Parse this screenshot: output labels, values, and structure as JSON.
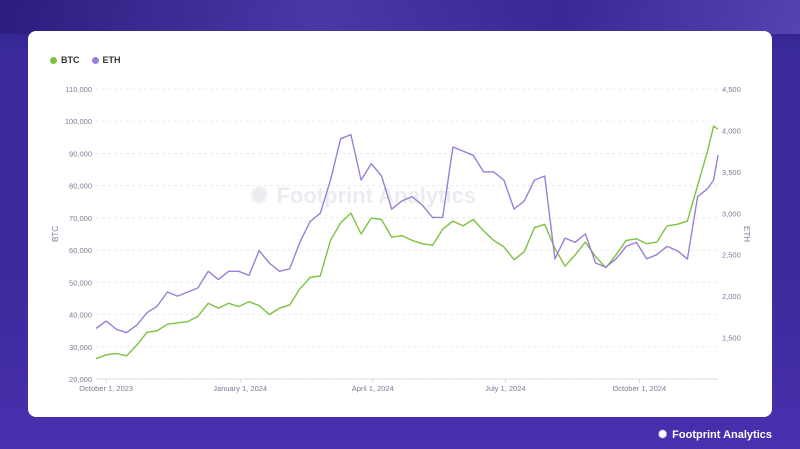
{
  "brand": {
    "name": "Footprint Analytics",
    "icon": "footprint-logo-icon"
  },
  "watermark": {
    "text": "Footprint Analytics"
  },
  "chart_data": {
    "type": "line",
    "x_ticks": [
      "October 1, 2023",
      "January 1, 2024",
      "April 1, 2024",
      "July 1, 2024",
      "October 1, 2024"
    ],
    "x_range": [
      "2023-09-24",
      "2024-11-24"
    ],
    "y_left_label": "BTC",
    "y_left_ticks": [
      "20,000",
      "30,000",
      "40,000",
      "50,000",
      "60,000",
      "70,000",
      "80,000",
      "90,000",
      "100,000",
      "110,000"
    ],
    "y_left_range": [
      20000,
      110000
    ],
    "y_right_label": "ETH",
    "y_right_ticks": [
      "1,500",
      "2,000",
      "2,500",
      "3,000",
      "3,500",
      "4,000",
      "4,500"
    ],
    "y_right_range": [
      1000,
      4500
    ],
    "grid": true,
    "legend_position": "top-left",
    "series": [
      {
        "name": "BTC",
        "color": "#7cc243",
        "axis": "left",
        "points": [
          [
            "2023-09-24",
            26300
          ],
          [
            "2023-10-01",
            27500
          ],
          [
            "2023-10-08",
            27900
          ],
          [
            "2023-10-15",
            27200
          ],
          [
            "2023-10-22",
            30500
          ],
          [
            "2023-10-29",
            34500
          ],
          [
            "2023-11-05",
            35000
          ],
          [
            "2023-11-12",
            37000
          ],
          [
            "2023-11-19",
            37400
          ],
          [
            "2023-11-26",
            37800
          ],
          [
            "2023-12-03",
            39500
          ],
          [
            "2023-12-10",
            43500
          ],
          [
            "2023-12-17",
            42000
          ],
          [
            "2023-12-24",
            43500
          ],
          [
            "2023-12-31",
            42500
          ],
          [
            "2024-01-07",
            44000
          ],
          [
            "2024-01-14",
            42800
          ],
          [
            "2024-01-21",
            40000
          ],
          [
            "2024-01-28",
            42000
          ],
          [
            "2024-02-04",
            43000
          ],
          [
            "2024-02-11",
            48000
          ],
          [
            "2024-02-18",
            51500
          ],
          [
            "2024-02-25",
            52000
          ],
          [
            "2024-03-03",
            63000
          ],
          [
            "2024-03-10",
            68500
          ],
          [
            "2024-03-17",
            71500
          ],
          [
            "2024-03-24",
            65000
          ],
          [
            "2024-03-31",
            70000
          ],
          [
            "2024-04-07",
            69500
          ],
          [
            "2024-04-14",
            64000
          ],
          [
            "2024-04-21",
            64500
          ],
          [
            "2024-04-28",
            63000
          ],
          [
            "2024-05-05",
            62000
          ],
          [
            "2024-05-12",
            61500
          ],
          [
            "2024-05-19",
            66500
          ],
          [
            "2024-05-26",
            69000
          ],
          [
            "2024-06-02",
            67500
          ],
          [
            "2024-06-09",
            69500
          ],
          [
            "2024-06-16",
            66000
          ],
          [
            "2024-06-23",
            63000
          ],
          [
            "2024-06-30",
            61000
          ],
          [
            "2024-07-07",
            57000
          ],
          [
            "2024-07-14",
            59500
          ],
          [
            "2024-07-21",
            67000
          ],
          [
            "2024-07-28",
            68000
          ],
          [
            "2024-08-04",
            60500
          ],
          [
            "2024-08-11",
            55000
          ],
          [
            "2024-08-18",
            58500
          ],
          [
            "2024-08-25",
            62500
          ],
          [
            "2024-09-01",
            58000
          ],
          [
            "2024-09-08",
            54500
          ],
          [
            "2024-09-15",
            58500
          ],
          [
            "2024-09-22",
            63000
          ],
          [
            "2024-09-29",
            63500
          ],
          [
            "2024-10-06",
            62000
          ],
          [
            "2024-10-13",
            62500
          ],
          [
            "2024-10-20",
            67500
          ],
          [
            "2024-10-27",
            68000
          ],
          [
            "2024-11-03",
            69000
          ],
          [
            "2024-11-10",
            80000
          ],
          [
            "2024-11-17",
            91000
          ],
          [
            "2024-11-21",
            98500
          ],
          [
            "2024-11-24",
            97500
          ]
        ]
      },
      {
        "name": "ETH",
        "color": "#9b7fd4",
        "axis": "right",
        "points": [
          [
            "2023-09-24",
            1610
          ],
          [
            "2023-10-01",
            1700
          ],
          [
            "2023-10-08",
            1600
          ],
          [
            "2023-10-15",
            1560
          ],
          [
            "2023-10-22",
            1650
          ],
          [
            "2023-10-29",
            1800
          ],
          [
            "2023-11-05",
            1880
          ],
          [
            "2023-11-12",
            2050
          ],
          [
            "2023-11-19",
            2000
          ],
          [
            "2023-11-26",
            2050
          ],
          [
            "2023-12-03",
            2100
          ],
          [
            "2023-12-10",
            2300
          ],
          [
            "2023-12-17",
            2200
          ],
          [
            "2023-12-24",
            2300
          ],
          [
            "2023-12-31",
            2300
          ],
          [
            "2024-01-07",
            2250
          ],
          [
            "2024-01-14",
            2550
          ],
          [
            "2024-01-21",
            2400
          ],
          [
            "2024-01-28",
            2300
          ],
          [
            "2024-02-04",
            2330
          ],
          [
            "2024-02-11",
            2650
          ],
          [
            "2024-02-18",
            2900
          ],
          [
            "2024-02-25",
            3000
          ],
          [
            "2024-03-03",
            3400
          ],
          [
            "2024-03-10",
            3900
          ],
          [
            "2024-03-17",
            3950
          ],
          [
            "2024-03-24",
            3400
          ],
          [
            "2024-03-31",
            3600
          ],
          [
            "2024-04-07",
            3450
          ],
          [
            "2024-04-14",
            3050
          ],
          [
            "2024-04-21",
            3150
          ],
          [
            "2024-04-28",
            3200
          ],
          [
            "2024-05-05",
            3100
          ],
          [
            "2024-05-12",
            2950
          ],
          [
            "2024-05-19",
            2950
          ],
          [
            "2024-05-26",
            3800
          ],
          [
            "2024-06-02",
            3750
          ],
          [
            "2024-06-09",
            3700
          ],
          [
            "2024-06-16",
            3500
          ],
          [
            "2024-06-23",
            3500
          ],
          [
            "2024-06-30",
            3400
          ],
          [
            "2024-07-07",
            3050
          ],
          [
            "2024-07-14",
            3150
          ],
          [
            "2024-07-21",
            3400
          ],
          [
            "2024-07-28",
            3450
          ],
          [
            "2024-08-04",
            2450
          ],
          [
            "2024-08-11",
            2700
          ],
          [
            "2024-08-18",
            2650
          ],
          [
            "2024-08-25",
            2750
          ],
          [
            "2024-09-01",
            2400
          ],
          [
            "2024-09-08",
            2350
          ],
          [
            "2024-09-15",
            2450
          ],
          [
            "2024-09-22",
            2600
          ],
          [
            "2024-09-29",
            2650
          ],
          [
            "2024-10-06",
            2450
          ],
          [
            "2024-10-13",
            2500
          ],
          [
            "2024-10-20",
            2600
          ],
          [
            "2024-10-27",
            2550
          ],
          [
            "2024-11-03",
            2450
          ],
          [
            "2024-11-10",
            3200
          ],
          [
            "2024-11-17",
            3300
          ],
          [
            "2024-11-21",
            3400
          ],
          [
            "2024-11-24",
            3700
          ]
        ]
      }
    ]
  }
}
